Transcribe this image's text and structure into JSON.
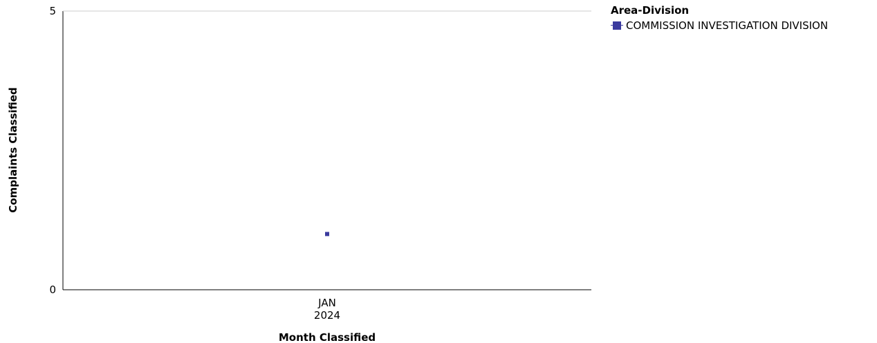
{
  "chart_data": {
    "type": "line",
    "title": "",
    "xlabel": "Month Classified",
    "ylabel": "Complaints Classified",
    "x": [
      [
        "JAN",
        "2024"
      ]
    ],
    "ylim": [
      0,
      5
    ],
    "yticks": [
      "0",
      "5"
    ],
    "legend": {
      "title": "Area-Division",
      "placement": "right"
    },
    "series": [
      {
        "name": "COMMISSION INVESTIGATION DIVISION",
        "color": "#3a3a9e",
        "values": [
          1
        ]
      }
    ],
    "grid": false
  }
}
